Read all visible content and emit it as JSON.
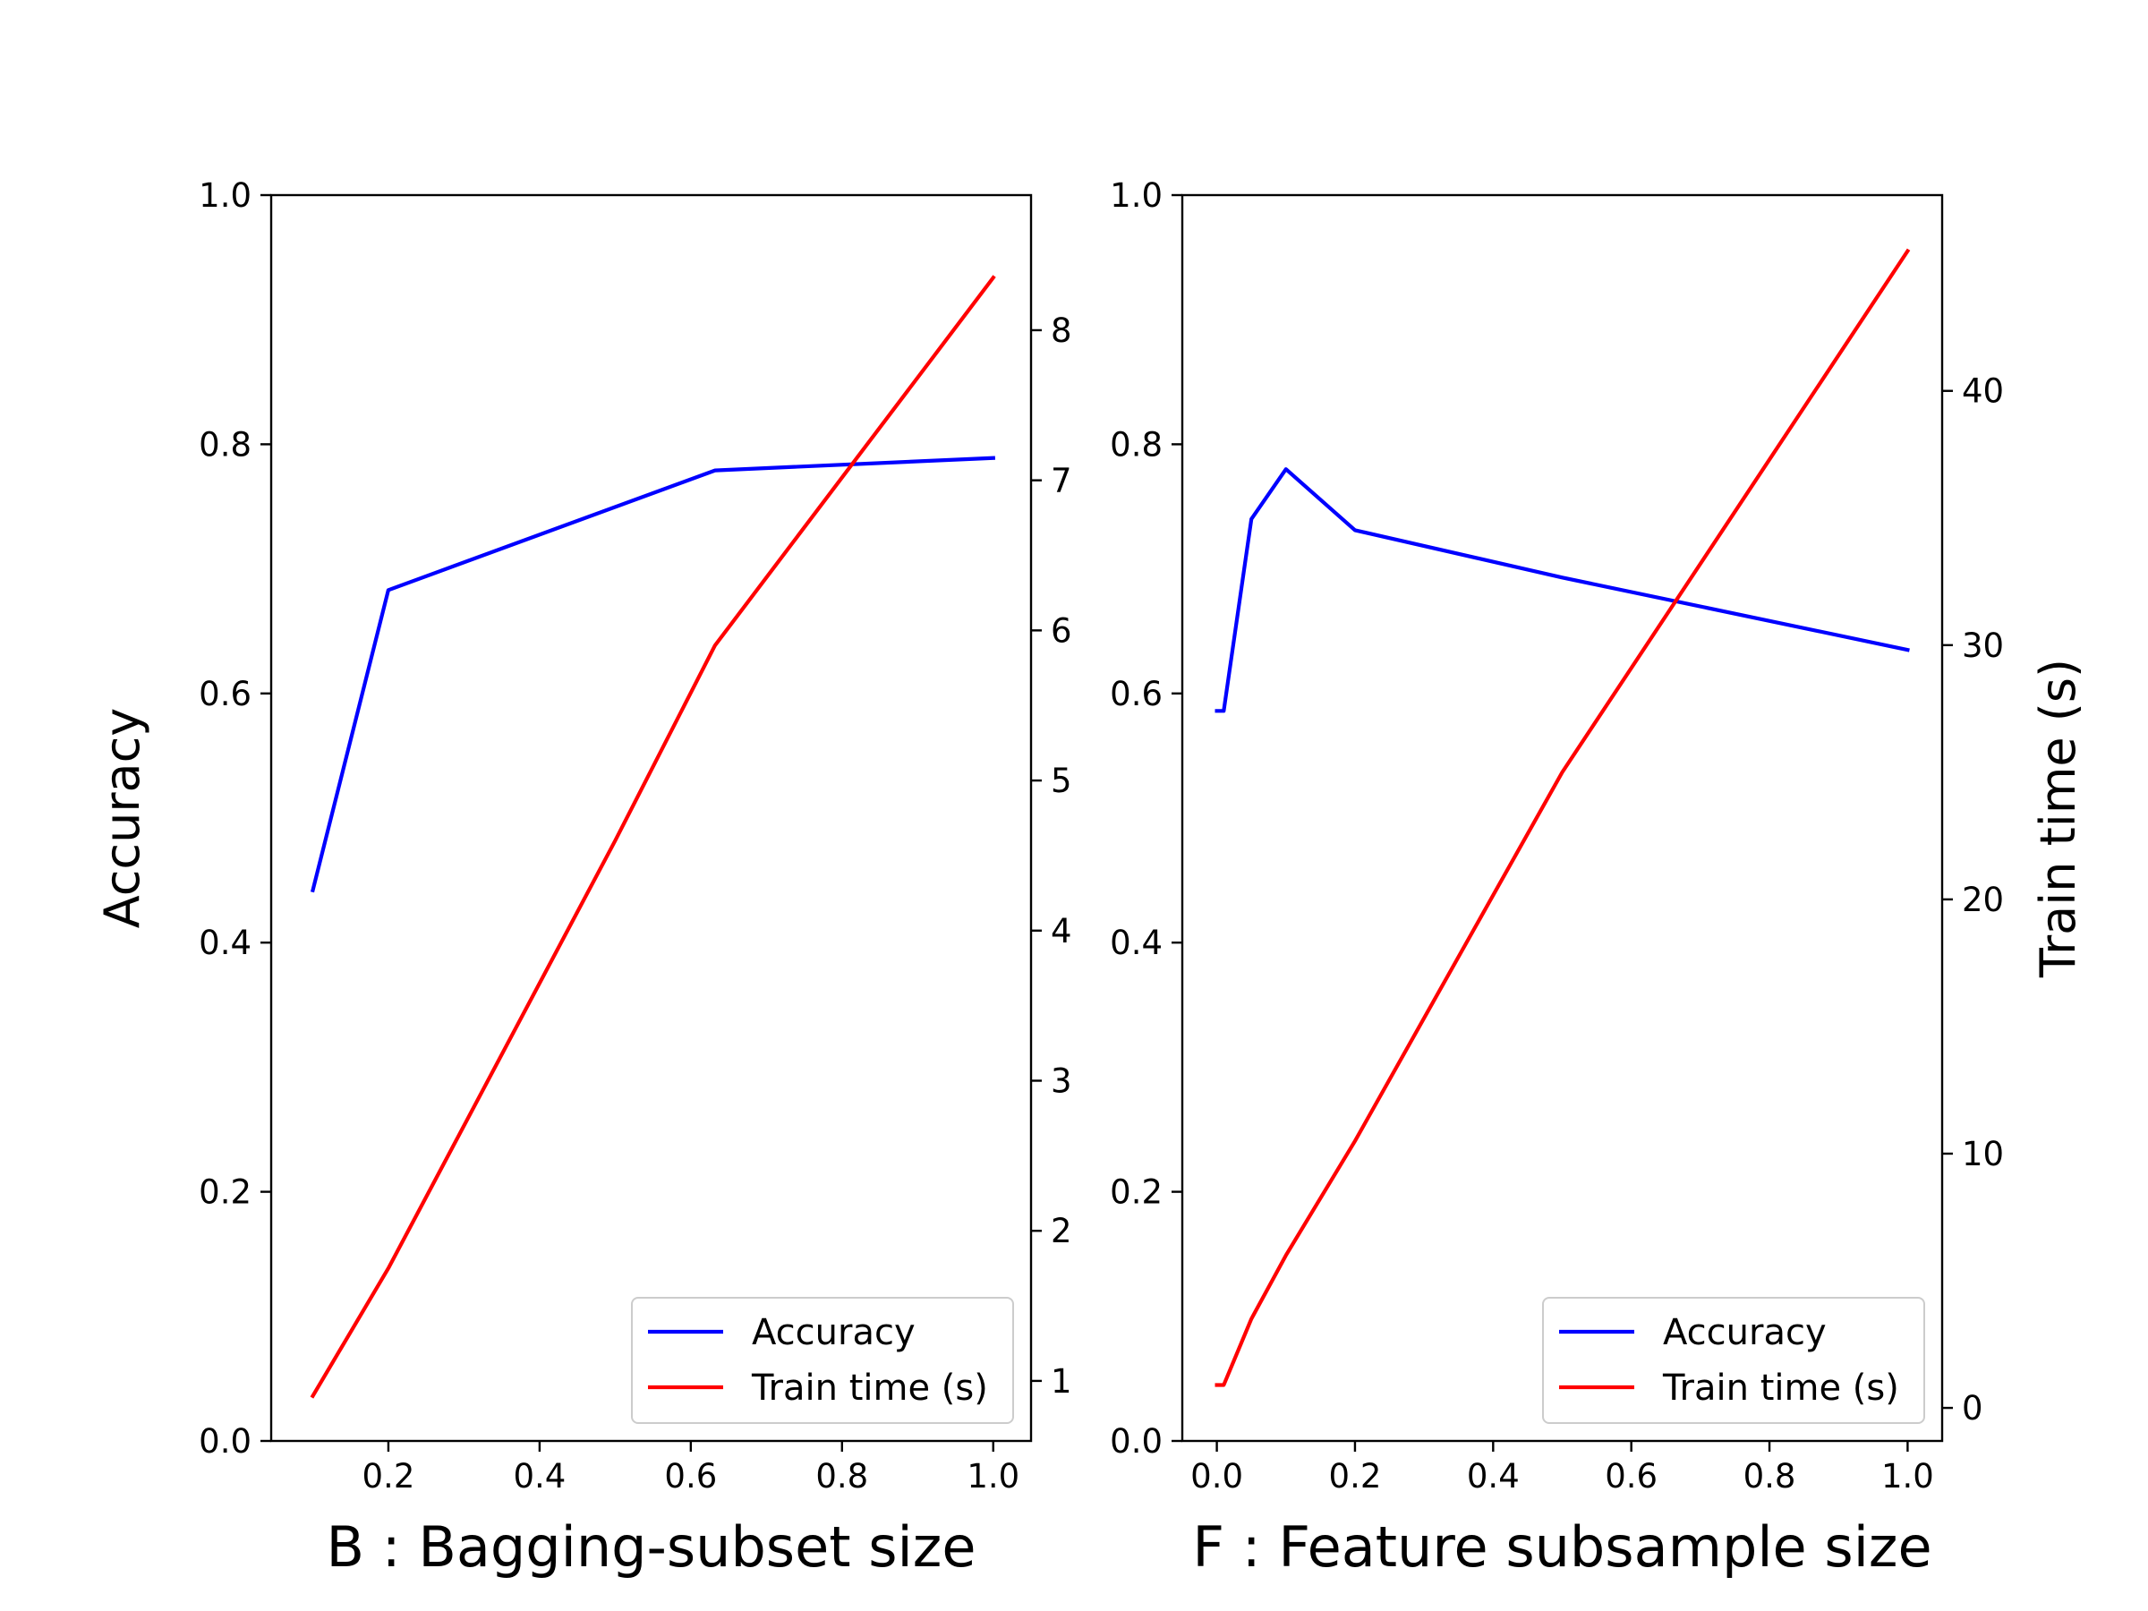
{
  "colors": {
    "accuracy": "#0000ff",
    "train_time": "#ff0000",
    "axis": "#000000",
    "background": "#ffffff",
    "legend_border": "#cccccc"
  },
  "chart_data": [
    {
      "type": "line",
      "xlabel": "B : Bagging-subset size",
      "ylabel_left": "Accuracy",
      "ylabel_right": "",
      "xlim": [
        0.045,
        1.05
      ],
      "ylim_left": [
        0.0,
        1.0
      ],
      "ylim_right": [
        0.6,
        8.9
      ],
      "xticks": [
        0.2,
        0.4,
        0.6,
        0.8,
        1.0
      ],
      "xtick_labels": [
        "0.2",
        "0.4",
        "0.6",
        "0.8",
        "1.0"
      ],
      "yticks_left": [
        0.0,
        0.2,
        0.4,
        0.6,
        0.8,
        1.0
      ],
      "ytick_labels_left": [
        "0.0",
        "0.2",
        "0.4",
        "0.6",
        "0.8",
        "1.0"
      ],
      "yticks_right": [
        1,
        2,
        3,
        4,
        5,
        6,
        7,
        8
      ],
      "ytick_labels_right": [
        "1",
        "2",
        "3",
        "4",
        "5",
        "6",
        "7",
        "8"
      ],
      "grid": false,
      "legend_position": "lower right",
      "series": [
        {
          "name": "Accuracy",
          "axis": "left",
          "x": [
            0.1,
            0.2,
            0.632,
            1.0
          ],
          "y": [
            0.442,
            0.683,
            0.779,
            0.789
          ]
        },
        {
          "name": "Train time (s)",
          "axis": "right",
          "x": [
            0.1,
            0.2,
            0.5,
            0.632,
            1.0
          ],
          "y": [
            0.9,
            1.75,
            4.6,
            5.9,
            8.35
          ]
        }
      ]
    },
    {
      "type": "line",
      "xlabel": "F : Feature subsample size",
      "ylabel_left": "",
      "ylabel_right": "Train time (s)",
      "xlim": [
        -0.05,
        1.05
      ],
      "ylim_left": [
        0.0,
        1.0
      ],
      "ylim_right": [
        -1.3,
        47.7
      ],
      "xticks": [
        0.0,
        0.2,
        0.4,
        0.6,
        0.8,
        1.0
      ],
      "xtick_labels": [
        "0.0",
        "0.2",
        "0.4",
        "0.6",
        "0.8",
        "1.0"
      ],
      "yticks_left": [
        0.0,
        0.2,
        0.4,
        0.6,
        0.8,
        1.0
      ],
      "ytick_labels_left": [
        "0.0",
        "0.2",
        "0.4",
        "0.6",
        "0.8",
        "1.0"
      ],
      "yticks_right": [
        0,
        10,
        20,
        30,
        40
      ],
      "ytick_labels_right": [
        "0",
        "10",
        "20",
        "30",
        "40"
      ],
      "grid": false,
      "legend_position": "lower right",
      "series": [
        {
          "name": "Accuracy",
          "axis": "left",
          "x": [
            0.0,
            0.01,
            0.05,
            0.1,
            0.2,
            0.5,
            1.0
          ],
          "y": [
            0.586,
            0.586,
            0.74,
            0.78,
            0.731,
            0.693,
            0.635
          ]
        },
        {
          "name": "Train time (s)",
          "axis": "right",
          "x": [
            0.0,
            0.01,
            0.05,
            0.1,
            0.2,
            0.5,
            1.0
          ],
          "y": [
            0.9,
            0.9,
            3.5,
            6.0,
            10.5,
            25.0,
            45.5
          ]
        }
      ]
    }
  ]
}
